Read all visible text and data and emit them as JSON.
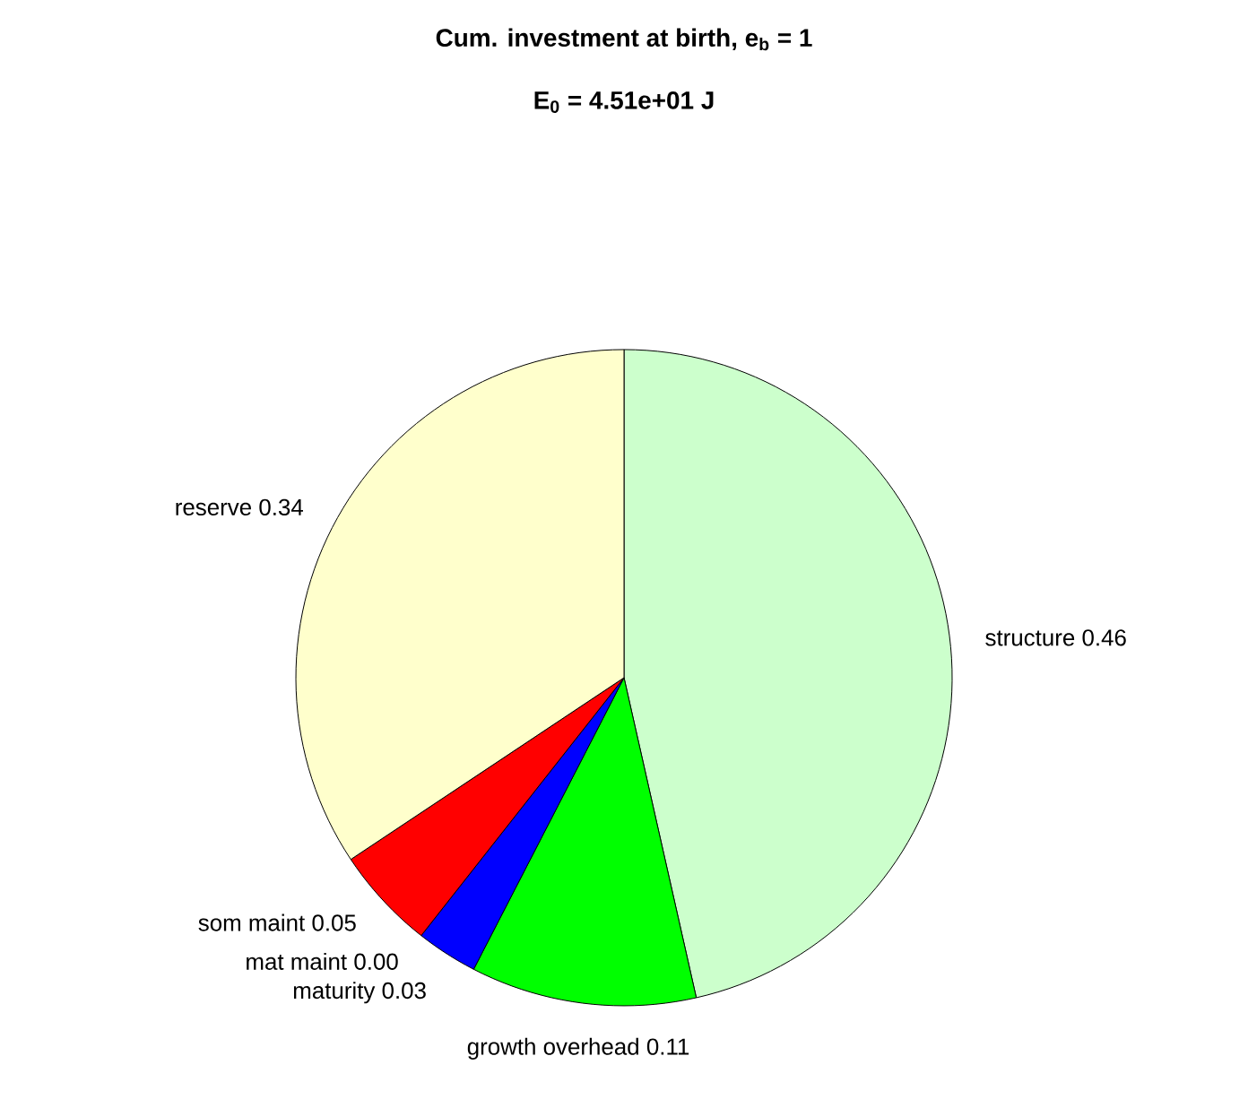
{
  "chart_data": {
    "type": "pie",
    "title": "Cum. investment at birth, e$_{b}$ = 1",
    "subtitle": "E$_{0}$ = 4.51e+01 J",
    "categories": [
      "structure",
      "growth overhead",
      "maturity",
      "mat maint",
      "som maint",
      "reserve"
    ],
    "values": [
      0.46,
      0.11,
      0.03,
      0.0,
      0.05,
      0.34
    ],
    "colors": [
      "#ccffcc",
      "#00ff00",
      "#0000ff",
      "#ff00ff",
      "#ff0000",
      "#ffffcc"
    ],
    "value_labels": [
      "0.46",
      "0.11",
      "0.03",
      "0.00",
      "0.05",
      "0.34"
    ]
  }
}
